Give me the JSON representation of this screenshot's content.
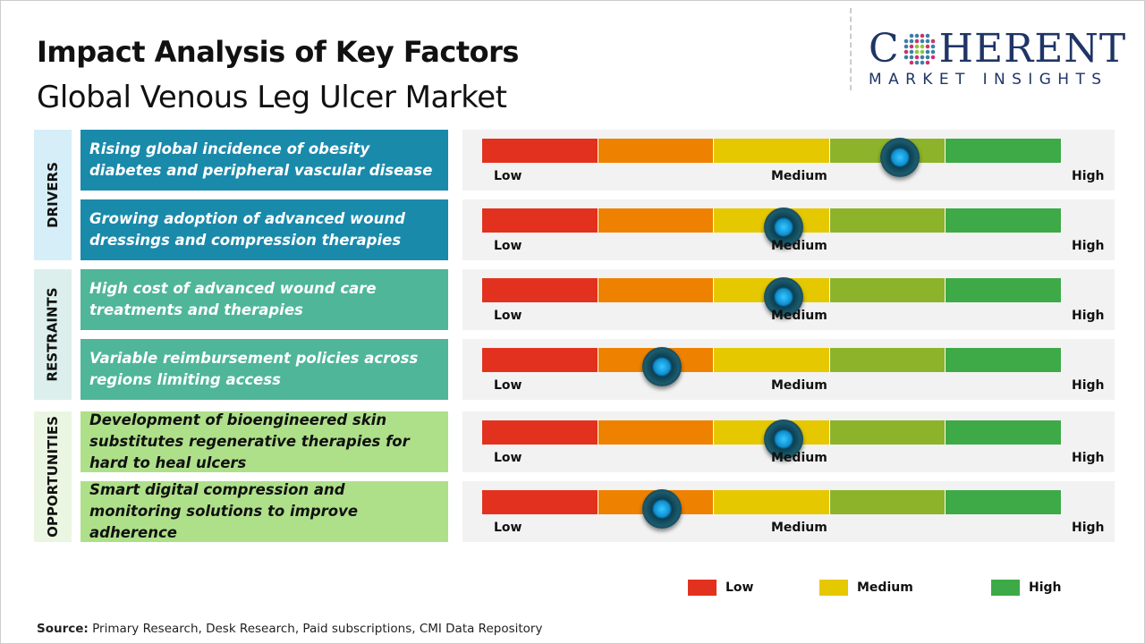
{
  "title": "Impact Analysis of Key Factors",
  "subtitle": "Global Venous Leg Ulcer Market",
  "logo": {
    "word": "COHERENT",
    "tagline": "MARKET INSIGHTS"
  },
  "colors": {
    "low": "#e2321f",
    "low_medium": "#ee8200",
    "medium": "#e6c800",
    "medium_high": "#8db32a",
    "high": "#3daa47",
    "knob": "#1aa8e6"
  },
  "scale_labels": {
    "low": "Low",
    "medium": "Medium",
    "high": "High"
  },
  "chart_data": {
    "type": "gauge",
    "scale": [
      "Low",
      "Medium",
      "High"
    ],
    "categories": [
      {
        "name": "DRIVERS",
        "label_bg": "#d6eef8",
        "row_bg": "#1a8aab",
        "text_color": "#ffffff",
        "factors": [
          {
            "text": "Rising global incidence of obesity diabetes and peripheral vascular disease",
            "impact": 0.72
          },
          {
            "text": "Growing adoption of advanced wound dressings and compression therapies",
            "impact": 0.52
          }
        ]
      },
      {
        "name": "RESTRAINTS",
        "label_bg": "#dcefec",
        "row_bg": "#4fb699",
        "text_color": "#ffffff",
        "factors": [
          {
            "text": "High cost of advanced wound care treatments and therapies",
            "impact": 0.52
          },
          {
            "text": "Variable reimbursement policies across regions limiting access",
            "impact": 0.31
          }
        ]
      },
      {
        "name": "OPPORTUNITIES",
        "label_bg": "#eaf6e1",
        "row_bg": "#aee08a",
        "text_color": "#111111",
        "factors": [
          {
            "text": "Development of bioengineered skin substitutes regenerative therapies for hard to heal ulcers",
            "impact": 0.52
          },
          {
            "text": "Smart digital compression and monitoring solutions to improve adherence",
            "impact": 0.31
          }
        ]
      }
    ],
    "legend": [
      {
        "label": "Low",
        "color": "#e2321f"
      },
      {
        "label": "Medium",
        "color": "#e6c800"
      },
      {
        "label": "High",
        "color": "#3daa47"
      }
    ]
  },
  "source": {
    "label": "Source:",
    "text": " Primary Research, Desk Research, Paid subscriptions, CMI Data Repository"
  }
}
